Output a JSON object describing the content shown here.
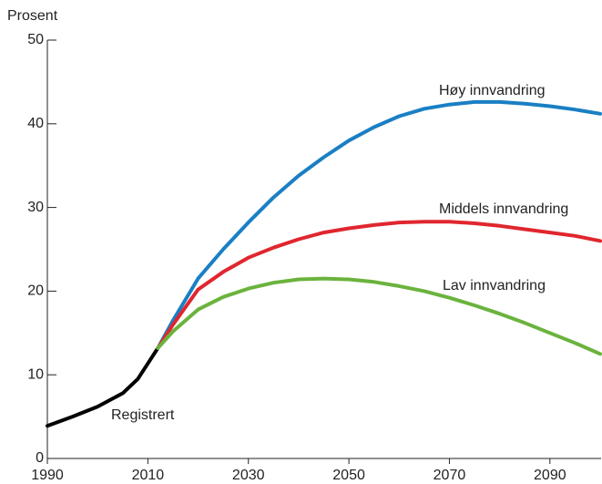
{
  "chart_data": {
    "type": "line",
    "y_label": "Prosent",
    "x": [
      1990,
      1995,
      2000,
      2005,
      2008,
      2012,
      2015,
      2020,
      2025,
      2030,
      2035,
      2040,
      2045,
      2050,
      2055,
      2060,
      2065,
      2070,
      2075,
      2080,
      2085,
      2090,
      2095,
      2100
    ],
    "series": [
      {
        "name": "Registrert",
        "color": "#000000",
        "values": [
          3.9,
          5.0,
          6.2,
          7.8,
          9.5,
          13.2,
          null,
          null,
          null,
          null,
          null,
          null,
          null,
          null,
          null,
          null,
          null,
          null,
          null,
          null,
          null,
          null,
          null,
          null
        ]
      },
      {
        "name": "Høy innvandring",
        "color": "#1a7fc4",
        "values": [
          null,
          null,
          null,
          null,
          null,
          13.2,
          16.5,
          21.5,
          25.0,
          28.2,
          31.2,
          33.8,
          36.0,
          38.0,
          39.6,
          40.9,
          41.8,
          42.3,
          42.6,
          42.6,
          42.4,
          42.1,
          41.7,
          41.2
        ]
      },
      {
        "name": "Middels innvandring",
        "color": "#e0262e",
        "values": [
          null,
          null,
          null,
          null,
          null,
          13.2,
          16.0,
          20.2,
          22.3,
          24.0,
          25.2,
          26.2,
          27.0,
          27.5,
          27.9,
          28.2,
          28.3,
          28.3,
          28.1,
          27.8,
          27.4,
          27.0,
          26.6,
          26.0
        ]
      },
      {
        "name": "Lav innvandring",
        "color": "#6ab33d",
        "values": [
          null,
          null,
          null,
          null,
          null,
          13.2,
          15.2,
          17.8,
          19.3,
          20.3,
          21.0,
          21.4,
          21.5,
          21.4,
          21.1,
          20.6,
          20.0,
          19.2,
          18.3,
          17.3,
          16.2,
          15.0,
          13.8,
          12.5
        ]
      }
    ],
    "xlim": [
      1990,
      2100
    ],
    "xticks": [
      1990,
      2010,
      2030,
      2050,
      2070,
      2090
    ],
    "ylim": [
      0,
      50
    ],
    "yticks": [
      0,
      10,
      20,
      30,
      40,
      50
    ]
  }
}
